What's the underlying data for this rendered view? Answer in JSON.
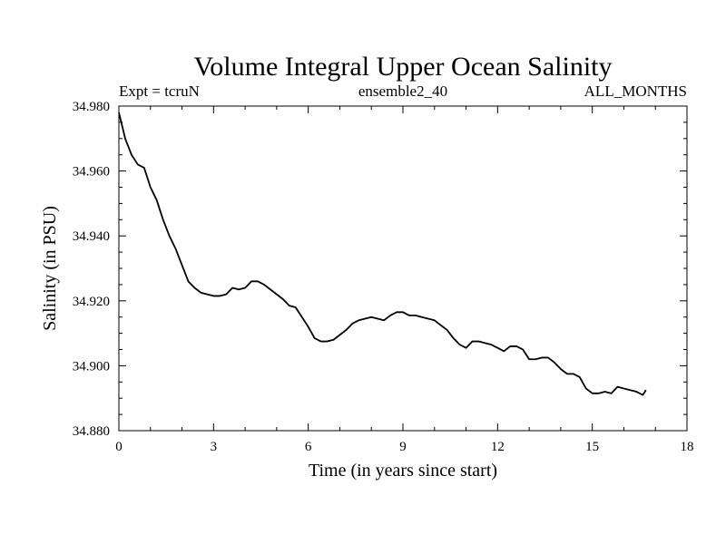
{
  "chart_data": {
    "type": "line",
    "title": "Volume Integral Upper Ocean Salinity",
    "subtitle_left": "Expt = tcruN",
    "subtitle_center": "ensemble2_40",
    "subtitle_right": "ALL_MONTHS",
    "xlabel": "Time (in years since start)",
    "ylabel": "Salinity (in PSU)",
    "xlim": [
      0,
      18
    ],
    "ylim": [
      34.88,
      34.98
    ],
    "xticks": [
      0,
      3,
      6,
      9,
      12,
      15,
      18
    ],
    "xtick_labels": [
      "0",
      "3",
      "6",
      "9",
      "12",
      "15",
      "18"
    ],
    "yticks": [
      34.88,
      34.9,
      34.92,
      34.94,
      34.96,
      34.98
    ],
    "ytick_labels": [
      "34.880",
      "34.900",
      "34.920",
      "34.940",
      "34.960",
      "34.980"
    ],
    "grid": false,
    "line_color": "#000000",
    "series": [
      {
        "name": "Salinity",
        "x": [
          0.0,
          0.2,
          0.4,
          0.6,
          0.8,
          0.9,
          1.0,
          1.2,
          1.4,
          1.6,
          1.8,
          2.0,
          2.2,
          2.4,
          2.6,
          2.8,
          3.0,
          3.2,
          3.4,
          3.6,
          3.8,
          4.0,
          4.2,
          4.4,
          4.6,
          4.8,
          5.0,
          5.2,
          5.4,
          5.6,
          5.8,
          6.0,
          6.2,
          6.4,
          6.6,
          6.8,
          7.0,
          7.2,
          7.4,
          7.6,
          7.8,
          8.0,
          8.2,
          8.4,
          8.6,
          8.8,
          9.0,
          9.2,
          9.4,
          9.6,
          9.8,
          10.0,
          10.2,
          10.4,
          10.6,
          10.8,
          11.0,
          11.2,
          11.4,
          11.6,
          11.8,
          12.0,
          12.2,
          12.4,
          12.6,
          12.8,
          13.0,
          13.2,
          13.4,
          13.6,
          13.8,
          14.0,
          14.2,
          14.4,
          14.6,
          14.8,
          15.0,
          15.2,
          15.4,
          15.6,
          15.8,
          16.0,
          16.2,
          16.4,
          16.6,
          16.7
        ],
        "y": [
          34.978,
          34.97,
          34.965,
          34.962,
          34.961,
          34.958,
          34.955,
          34.951,
          34.945,
          34.94,
          34.936,
          34.931,
          34.926,
          34.924,
          34.9225,
          34.922,
          34.9215,
          34.9215,
          34.922,
          34.924,
          34.9235,
          34.924,
          34.926,
          34.926,
          34.925,
          34.9235,
          34.922,
          34.9205,
          34.9185,
          34.918,
          34.915,
          34.912,
          34.9085,
          34.9075,
          34.9075,
          34.908,
          34.9095,
          34.911,
          34.913,
          34.914,
          34.9145,
          34.915,
          34.9145,
          34.914,
          34.9155,
          34.9165,
          34.9165,
          34.9155,
          34.9155,
          34.915,
          34.9145,
          34.914,
          34.9125,
          34.911,
          34.9085,
          34.9065,
          34.9055,
          34.9075,
          34.9075,
          34.907,
          34.9065,
          34.9055,
          34.9045,
          34.906,
          34.906,
          34.905,
          34.902,
          34.902,
          34.9025,
          34.9025,
          34.901,
          34.899,
          34.8975,
          34.8975,
          34.8965,
          34.893,
          34.8915,
          34.8915,
          34.892,
          34.8915,
          34.8935,
          34.893,
          34.8925,
          34.892,
          34.891,
          34.8925
        ]
      }
    ]
  }
}
